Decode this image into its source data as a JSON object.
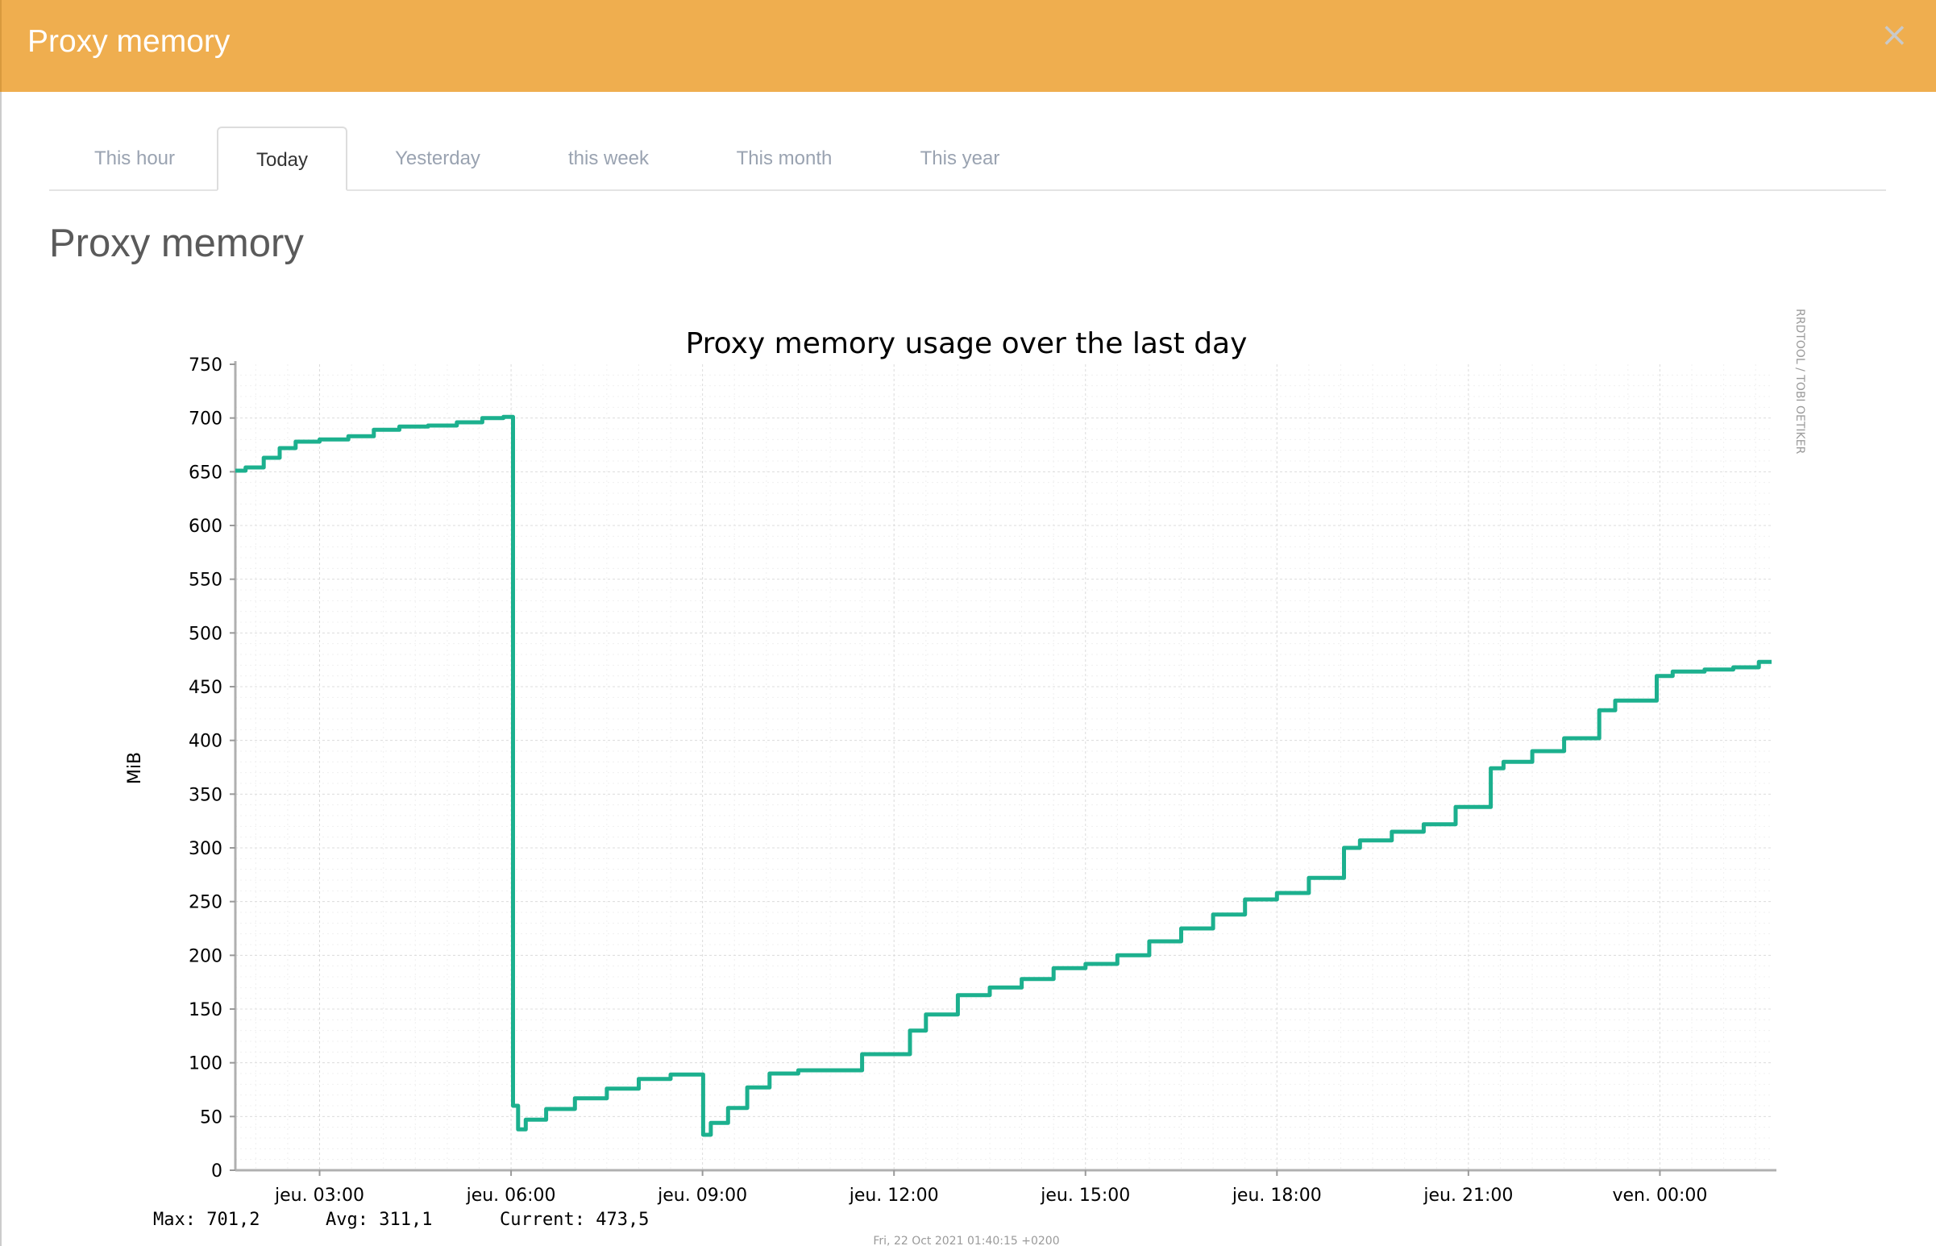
{
  "modal": {
    "title": "Proxy memory",
    "close_label": "×"
  },
  "tabs": [
    {
      "label": "This hour",
      "active": false
    },
    {
      "label": "Today",
      "active": true
    },
    {
      "label": "Yesterday",
      "active": false
    },
    {
      "label": "this week",
      "active": false
    },
    {
      "label": "This month",
      "active": false
    },
    {
      "label": "This year",
      "active": false
    }
  ],
  "section_title": "Proxy memory",
  "colors": {
    "header": "#efae4f",
    "line": "#1cb08e"
  },
  "chart_data": {
    "type": "line",
    "title": "Proxy memory usage over the last day",
    "ylabel": "MiB",
    "xlabel": "",
    "ylim": [
      0,
      750
    ],
    "yticks": [
      0,
      50,
      100,
      150,
      200,
      250,
      300,
      350,
      400,
      450,
      500,
      550,
      600,
      650,
      700,
      750
    ],
    "xlim_hours": [
      0.93,
      25.0
    ],
    "xticks": [
      {
        "h": 2.25,
        "label": "jeu. 03:00"
      },
      {
        "h": 5.25,
        "label": "jeu. 06:00"
      },
      {
        "h": 8.25,
        "label": "jeu. 09:00"
      },
      {
        "h": 11.25,
        "label": "jeu. 12:00"
      },
      {
        "h": 14.25,
        "label": "jeu. 15:00"
      },
      {
        "h": 17.25,
        "label": "jeu. 18:00"
      },
      {
        "h": 20.25,
        "label": "jeu. 21:00"
      },
      {
        "h": 23.25,
        "label": "ven. 00:00"
      }
    ],
    "grid": true,
    "series": [
      {
        "name": "",
        "points": [
          [
            0.93,
            651
          ],
          [
            1.25,
            654
          ],
          [
            1.5,
            663
          ],
          [
            1.75,
            672
          ],
          [
            2.0,
            678
          ],
          [
            2.5,
            680
          ],
          [
            2.9,
            683
          ],
          [
            3.3,
            689
          ],
          [
            3.7,
            692
          ],
          [
            4.2,
            693
          ],
          [
            4.6,
            696
          ],
          [
            5.0,
            700
          ],
          [
            5.26,
            701
          ],
          [
            5.28,
            60
          ],
          [
            5.36,
            38
          ],
          [
            5.6,
            47
          ],
          [
            6.0,
            57
          ],
          [
            6.5,
            67
          ],
          [
            7.0,
            76
          ],
          [
            7.5,
            85
          ],
          [
            8.0,
            89
          ],
          [
            8.23,
            89
          ],
          [
            8.26,
            33
          ],
          [
            8.5,
            44
          ],
          [
            8.8,
            58
          ],
          [
            9.1,
            77
          ],
          [
            9.5,
            90
          ],
          [
            10.0,
            93
          ],
          [
            10.5,
            93
          ],
          [
            11.0,
            108
          ],
          [
            11.5,
            130
          ],
          [
            12.0,
            145
          ],
          [
            12.5,
            163
          ],
          [
            13.0,
            170
          ],
          [
            13.5,
            178
          ],
          [
            14.0,
            188
          ],
          [
            14.5,
            192
          ],
          [
            15.0,
            200
          ],
          [
            15.5,
            213
          ],
          [
            16.0,
            225
          ],
          [
            16.5,
            238
          ],
          [
            17.0,
            252
          ],
          [
            17.5,
            258
          ],
          [
            18.0,
            272
          ],
          [
            18.3,
            300
          ],
          [
            18.8,
            307
          ],
          [
            19.3,
            315
          ],
          [
            19.8,
            322
          ],
          [
            20.3,
            338
          ],
          [
            20.6,
            374
          ],
          [
            21.0,
            380
          ],
          [
            21.5,
            390
          ],
          [
            22.0,
            402
          ],
          [
            22.3,
            428
          ],
          [
            22.8,
            437
          ],
          [
            23.2,
            460
          ],
          [
            23.7,
            464
          ],
          [
            24.2,
            466
          ],
          [
            24.6,
            468
          ],
          [
            25.0,
            473
          ]
        ]
      }
    ],
    "stats": [
      {
        "label": "Max:",
        "value": "701,2"
      },
      {
        "label": "Avg:",
        "value": "311,1"
      },
      {
        "label": "Current:",
        "value": "473,5"
      }
    ],
    "footer": "Fri, 22 Oct 2021 01:40:15 +0200",
    "watermark": "RRDTOOL / TOBI OETIKER"
  }
}
